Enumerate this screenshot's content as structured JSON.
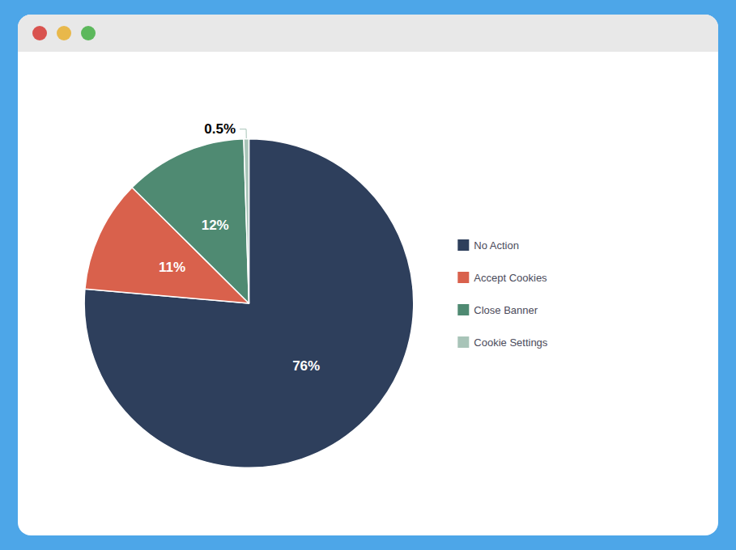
{
  "chart_data": {
    "type": "pie",
    "categories": [
      "No Action",
      "Accept Cookies",
      "Close Banner",
      "Cookie Settings"
    ],
    "values": [
      76,
      11,
      12,
      0.5
    ],
    "value_labels": [
      "76%",
      "11%",
      "12%",
      "0.5%"
    ],
    "colors": [
      "#2e3f5c",
      "#d9614c",
      "#4f8a72",
      "#a8c4b8"
    ],
    "data_labels": true,
    "legend": "right"
  }
}
